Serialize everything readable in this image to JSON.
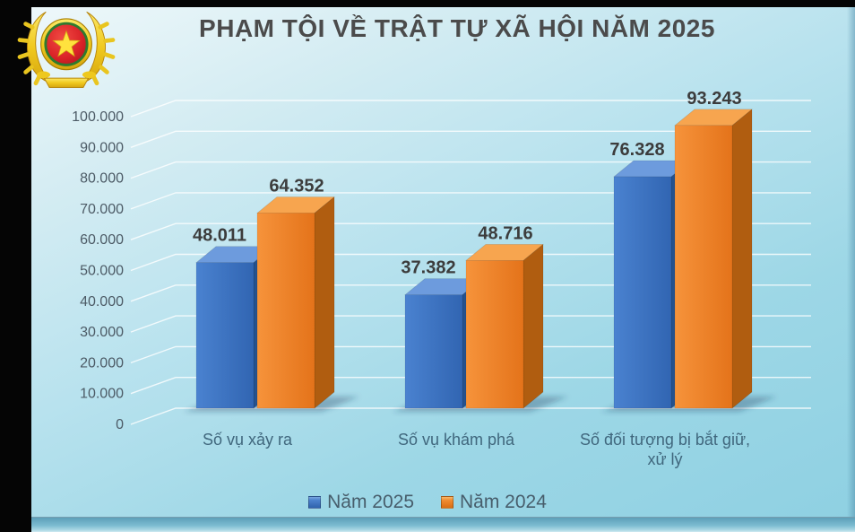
{
  "page": {
    "title": "PHẠM TỘI VỀ TRẬT TỰ XÃ HỘI NĂM 2025"
  },
  "chart_data": {
    "type": "bar",
    "style": "3d-clustered-column",
    "title": "PHẠM TỘI VỀ TRẬT TỰ XÃ HỘI NĂM 2025",
    "categories": [
      "Số vụ xảy ra",
      "Số vụ khám phá",
      "Số đối tượng bị bắt giữ,\nxử lý"
    ],
    "series": [
      {
        "name": "Năm 2025",
        "values": [
          48011,
          37382,
          76328
        ],
        "labels": [
          "48.011",
          "37.382",
          "76.328"
        ],
        "colors": {
          "front": "#3b73c1",
          "front_light": "#4a82d0",
          "front_dark": "#3165b2",
          "top": "#6d9bdd",
          "side": "#26528e"
        }
      },
      {
        "name": "Năm 2024",
        "values": [
          64352,
          48716,
          93243
        ],
        "labels": [
          "64.352",
          "48.716",
          "93.243"
        ],
        "colors": {
          "front": "#ee7d26",
          "front_light": "#f6933b",
          "front_dark": "#e4731a",
          "top": "#f7a54f",
          "side": "#b05d10"
        }
      }
    ],
    "ylim": [
      0,
      100000
    ],
    "ytick_step": 10000,
    "ytick_labels": [
      "0",
      "10.000",
      "20.000",
      "30.000",
      "40.000",
      "50.000",
      "60.000",
      "70.000",
      "80.000",
      "90.000",
      "100.000"
    ],
    "grid": true,
    "legend_position": "bottom"
  }
}
